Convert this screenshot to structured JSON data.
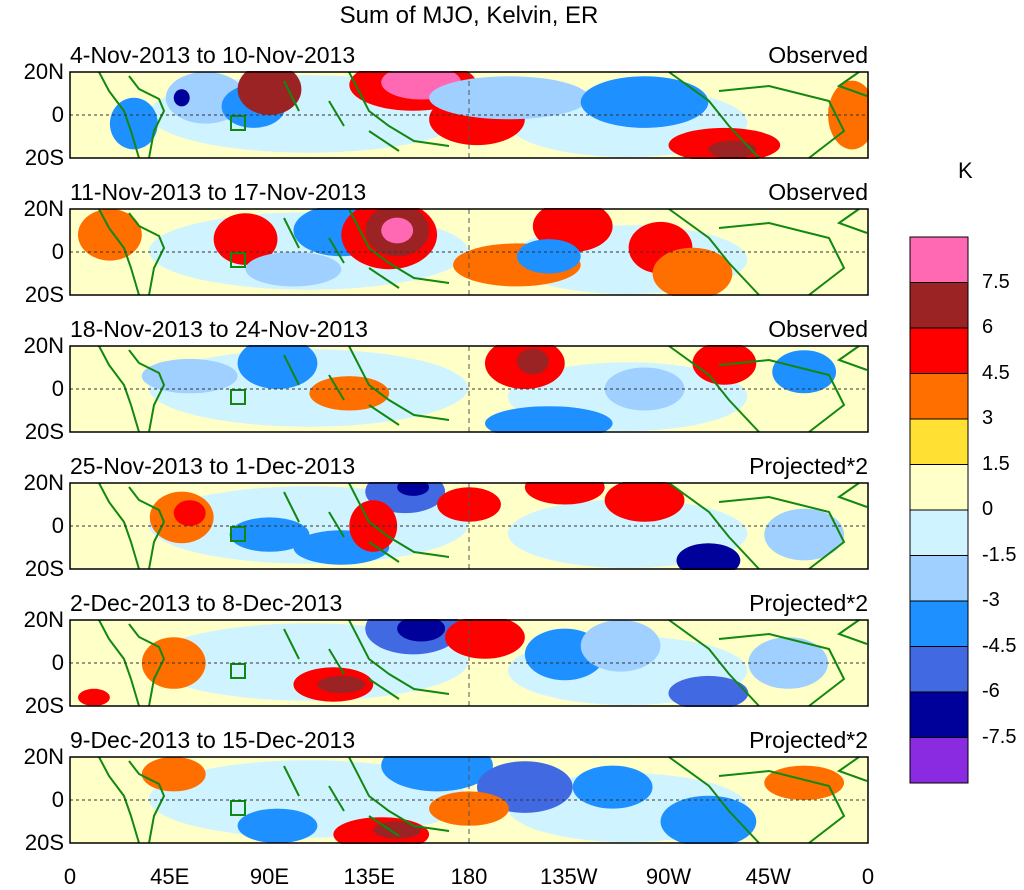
{
  "title": "Sum of MJO, Kelvin, ER",
  "panels": [
    {
      "date_range": "4-Nov-2013 to 10-Nov-2013",
      "type": "Observed"
    },
    {
      "date_range": "11-Nov-2013 to 17-Nov-2013",
      "type": "Observed"
    },
    {
      "date_range": "18-Nov-2013 to 24-Nov-2013",
      "type": "Observed"
    },
    {
      "date_range": "25-Nov-2013 to 1-Dec-2013",
      "type": "Projected*2"
    },
    {
      "date_range": "2-Dec-2013 to 8-Dec-2013",
      "type": "Projected*2"
    },
    {
      "date_range": "9-Dec-2013 to 15-Dec-2013",
      "type": "Projected*2"
    }
  ],
  "lat_labels": [
    "20N",
    "0",
    "20S"
  ],
  "lon_labels": [
    "0",
    "45E",
    "90E",
    "135E",
    "180",
    "135W",
    "90W",
    "45W",
    "0"
  ],
  "colorbar": {
    "unit": "K",
    "labels": [
      "7.5",
      "6",
      "4.5",
      "3",
      "1.5",
      "0",
      "-1.5",
      "-3",
      "-4.5",
      "-6",
      "-7.5"
    ],
    "colors": [
      "#ff69b4",
      "#9b2323",
      "#ff0000",
      "#ff6f00",
      "#ffe033",
      "#ffffc8",
      "#d0f4ff",
      "#9fd0ff",
      "#1e90ff",
      "#4169e1",
      "#00009b",
      "#8a2be2"
    ]
  }
}
